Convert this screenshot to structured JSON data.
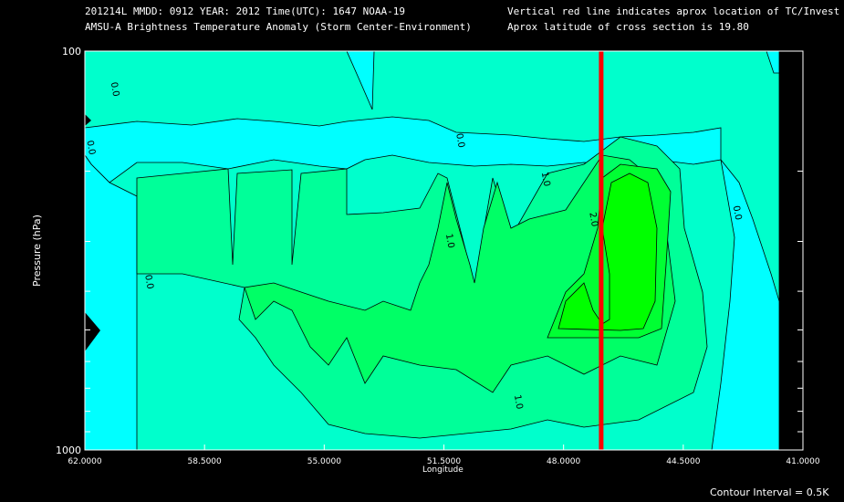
{
  "header": {
    "line1": "201214L  MMDD: 0912 YEAR: 2012 Time(UTC): 1647 NOAA-19",
    "line2": "AMSU-A Brightness Temperature Anomaly (Storm Center-Environment)",
    "line3": "Vertical red line indicates aprox location of TC/Invest",
    "line4": "Aprox latitude of cross section is 19.80"
  },
  "footer": {
    "contour_interval": "Contour Interval = 0.5K"
  },
  "colors": {
    "background": "#000000",
    "cyan": "#00ffff",
    "band_0_0": "#00ffcc",
    "band_0_5": "#00ff99",
    "band_1_0": "#00ff66",
    "band_1_5": "#00ff33",
    "band_2_0": "#00ff00",
    "tc_line": "#ff0000"
  },
  "chart_data": {
    "type": "heatmap",
    "xlabel": "Longitude",
    "ylabel": "Pressure (hPa)",
    "x_ticks": [
      "62.0000",
      "58.5000",
      "55.0000",
      "51.5000",
      "48.0000",
      "44.5000",
      "41.0000"
    ],
    "x_tick_values": [
      62.0,
      58.5,
      55.0,
      51.5,
      48.0,
      44.5,
      41.0
    ],
    "xlim": [
      62.0,
      41.0
    ],
    "y_ticks": [
      "100",
      "1000"
    ],
    "ylim": [
      1000,
      100
    ],
    "y_scale": "log",
    "tc_longitude": 46.9,
    "contour_interval_K": 0.5,
    "contour_labels": [
      {
        "text": "0.0",
        "lon": 61.2,
        "p": 125
      },
      {
        "text": "0.0",
        "lon": 61.9,
        "p": 175
      },
      {
        "text": "0.0",
        "lon": 60.2,
        "p": 380
      },
      {
        "text": "0.0",
        "lon": 51.1,
        "p": 168
      },
      {
        "text": "1.0",
        "lon": 48.6,
        "p": 210
      },
      {
        "text": "1.0",
        "lon": 51.4,
        "p": 300
      },
      {
        "text": "2.0",
        "lon": 47.2,
        "p": 265
      },
      {
        "text": "0.0",
        "lon": 43.0,
        "p": 255
      },
      {
        "text": "1.0",
        "lon": 49.4,
        "p": 760
      }
    ]
  }
}
